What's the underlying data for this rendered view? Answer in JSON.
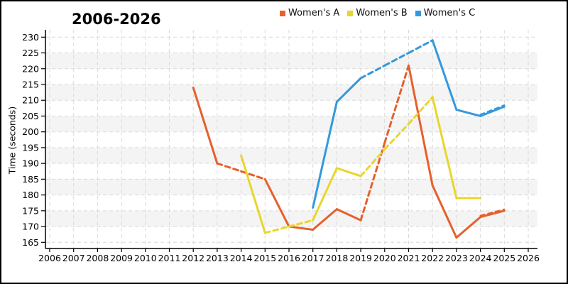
{
  "chart_data": {
    "type": "line",
    "title": "2006-2026",
    "ylabel": "Time (seconds)",
    "xlabel": "",
    "x_ticks": [
      2006,
      2007,
      2008,
      2009,
      2010,
      2011,
      2012,
      2013,
      2014,
      2015,
      2016,
      2017,
      2018,
      2019,
      2020,
      2021,
      2022,
      2023,
      2024,
      2025,
      2026
    ],
    "y_ticks": [
      165,
      170,
      175,
      180,
      185,
      190,
      195,
      200,
      205,
      210,
      215,
      220,
      225,
      230
    ],
    "ylim": [
      163,
      232
    ],
    "grid": "dashed",
    "legend_position": "top-center",
    "colors": {
      "band": "#f4f4f4",
      "gridline": "#d9d9d9",
      "axis": "#000000"
    },
    "series": [
      {
        "name": "Women's A",
        "color": "#e6602d",
        "points": [
          [
            2012,
            214
          ],
          [
            2013,
            190
          ],
          [
            2014,
            187.5
          ],
          [
            2015,
            185
          ],
          [
            2016,
            170
          ],
          [
            2017,
            169
          ],
          [
            2018,
            175.5
          ],
          [
            2019,
            172
          ],
          [
            2020,
            196.5
          ],
          [
            2021,
            221
          ],
          [
            2022,
            183
          ],
          [
            2023,
            166.5
          ],
          [
            2024,
            173
          ],
          [
            2025,
            175
          ]
        ],
        "dashed_segments": [
          [
            2013,
            2015
          ],
          [
            2019,
            2021
          ]
        ],
        "dashed_overlay_segments": [
          [
            2024,
            2025
          ]
        ]
      },
      {
        "name": "Women's B",
        "color": "#e8d62c",
        "points": [
          [
            2014,
            192.5
          ],
          [
            2015,
            168
          ],
          [
            2016,
            170
          ],
          [
            2017,
            172
          ],
          [
            2018,
            188.5
          ],
          [
            2019,
            186
          ],
          [
            2020,
            194.5
          ],
          [
            2021,
            202.5
          ],
          [
            2022,
            211
          ],
          [
            2023,
            179
          ],
          [
            2024,
            179
          ]
        ],
        "dashed_segments": [
          [
            2015,
            2017
          ],
          [
            2019,
            2022
          ]
        ],
        "dashed_overlay_segments": []
      },
      {
        "name": "Women's C",
        "color": "#3399dd",
        "points": [
          [
            2017,
            176
          ],
          [
            2018,
            209.5
          ],
          [
            2019,
            217
          ],
          [
            2020,
            221
          ],
          [
            2021,
            225
          ],
          [
            2022,
            229
          ],
          [
            2023,
            207
          ],
          [
            2024,
            205
          ],
          [
            2025,
            208
          ]
        ],
        "dashed_segments": [
          [
            2019,
            2022
          ]
        ],
        "dashed_overlay_segments": [
          [
            2024,
            2025
          ]
        ]
      }
    ]
  }
}
